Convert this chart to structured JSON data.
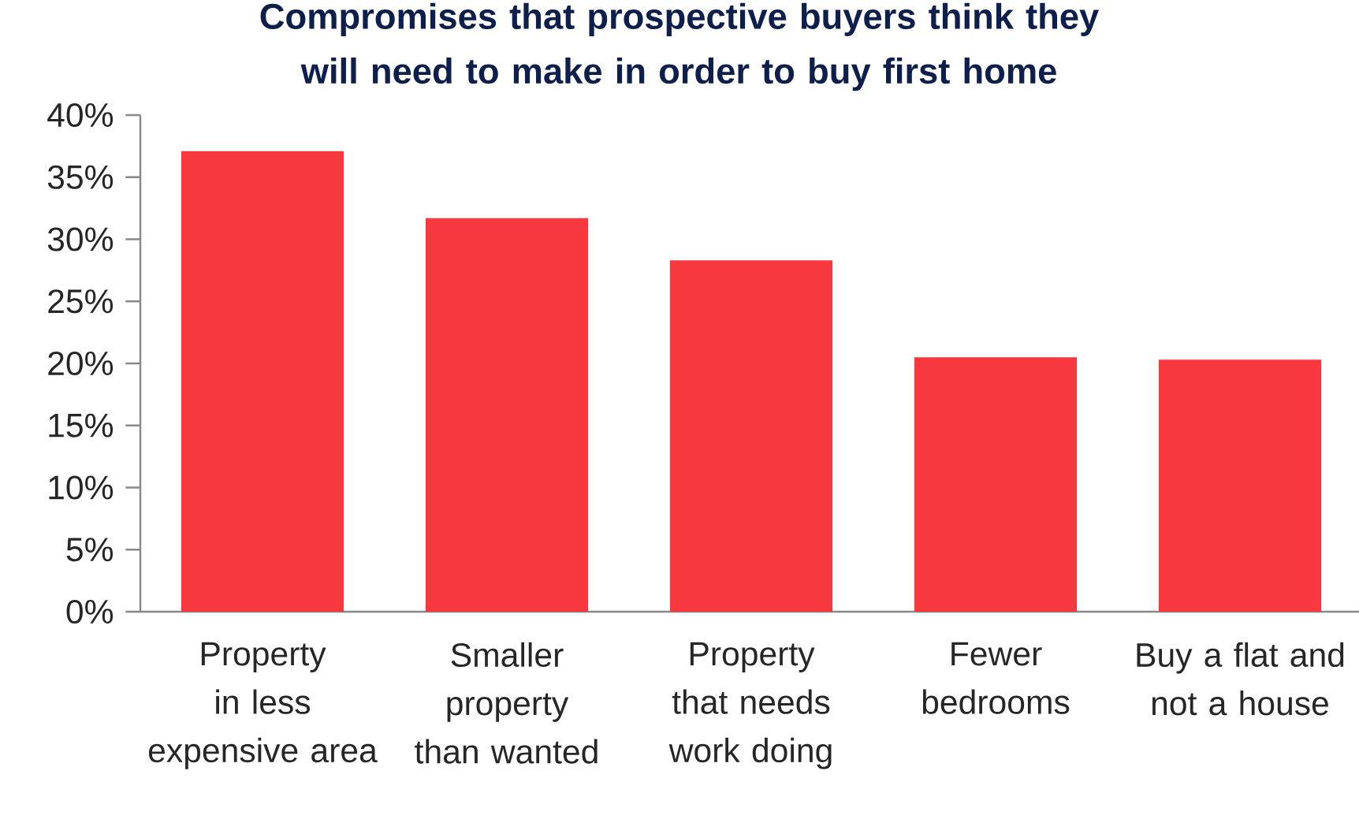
{
  "chart_data": {
    "type": "bar",
    "title": "Compromises that prospective buyers think they will need to make in order to buy first home",
    "categories": [
      "Property in less expensive area",
      "Smaller property than wanted",
      "Property that needs work doing",
      "Fewer bedrooms",
      "Buy a flat and not a house"
    ],
    "values": [
      37.1,
      31.7,
      28.3,
      20.5,
      20.3
    ],
    "color": "#f7383e",
    "ylim": [
      0,
      40
    ],
    "yticks": [
      {
        "value": 0,
        "label": "0%"
      },
      {
        "value": 5,
        "label": "5%"
      },
      {
        "value": 10,
        "label": "10%"
      },
      {
        "value": 15,
        "label": "15%"
      },
      {
        "value": 20,
        "label": "20%"
      },
      {
        "value": 25,
        "label": "25%"
      },
      {
        "value": 30,
        "label": "30%"
      },
      {
        "value": 35,
        "label": "35%"
      },
      {
        "value": 40,
        "label": "40%"
      }
    ]
  }
}
